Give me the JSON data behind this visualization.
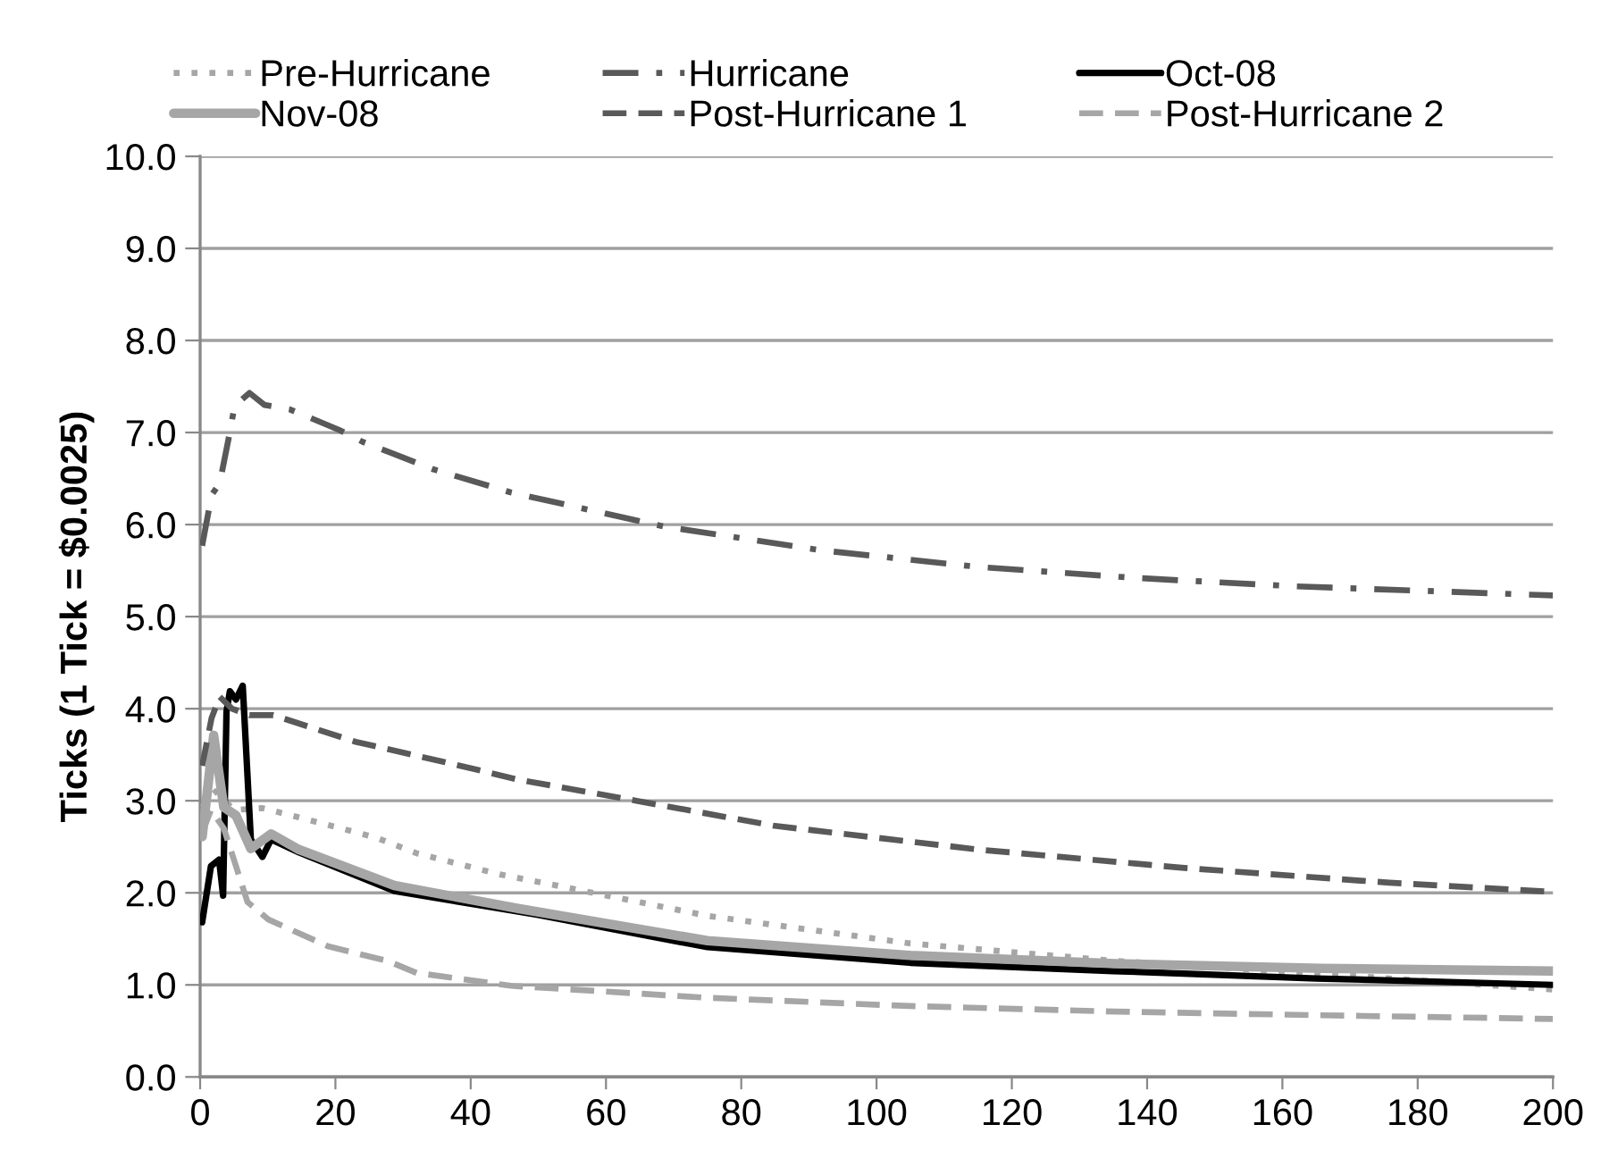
{
  "chart_data": {
    "type": "line",
    "ylabel": "Ticks (1 Tick = $0.0025)",
    "xlim": [
      0,
      200
    ],
    "xticks": [
      0,
      20,
      40,
      60,
      80,
      100,
      120,
      140,
      160,
      180,
      200
    ],
    "ylim": [
      0,
      10
    ],
    "yticks": [
      {
        "value": 0,
        "label": "0.0"
      },
      {
        "value": 1,
        "label": "1.0"
      },
      {
        "value": 2,
        "label": "2.0"
      },
      {
        "value": 3,
        "label": "3.0"
      },
      {
        "value": 4,
        "label": "4.0"
      },
      {
        "value": 5,
        "label": "5.0"
      },
      {
        "value": 6,
        "label": "6.0"
      },
      {
        "value": 7,
        "label": "7.0"
      },
      {
        "value": 8,
        "label": "8.0"
      },
      {
        "value": 9,
        "label": "9.0"
      },
      {
        "value": 10,
        "label": "10.0"
      }
    ],
    "grid": "y",
    "legend": "top",
    "marker": "none",
    "series": [
      {
        "name": "Pre-Hurricane",
        "color": "#a6a6a6",
        "line_style": "dotted",
        "x": [
          0.3,
          2.3,
          5,
          9.2,
          14.6,
          26,
          32,
          44.3,
          51.3,
          75,
          105,
          135.4,
          165.7,
          200
        ],
        "values": [
          2.93,
          3.1,
          2.9,
          2.92,
          2.82,
          2.6,
          2.43,
          2.2,
          2.1,
          1.75,
          1.45,
          1.26,
          1.12,
          0.95
        ]
      },
      {
        "name": "Hurricane",
        "color": "#595959",
        "line_style": "dashdot",
        "x": [
          0.3,
          1.7,
          2.9,
          4.2,
          5.1,
          7.3,
          9.5,
          13.3,
          20.5,
          24,
          34.5,
          45.9,
          68.5,
          91.9,
          115,
          138.4,
          161.7,
          200
        ],
        "values": [
          5.77,
          6.32,
          6.45,
          6.93,
          7.29,
          7.43,
          7.3,
          7.25,
          7.03,
          6.9,
          6.6,
          6.35,
          5.98,
          5.72,
          5.54,
          5.42,
          5.33,
          5.23
        ]
      },
      {
        "name": "Oct-08",
        "color": "#000000",
        "line_style": "solid",
        "x": [
          0.3,
          1.6,
          2.8,
          3.4,
          3.9,
          4.4,
          5.3,
          6.3,
          7.5,
          9.2,
          10.5,
          14.6,
          28.7,
          50,
          75,
          105,
          135,
          165,
          200
        ],
        "values": [
          1.68,
          2.29,
          2.36,
          1.97,
          3.97,
          4.19,
          4.1,
          4.25,
          2.58,
          2.39,
          2.58,
          2.44,
          2.02,
          1.76,
          1.41,
          1.24,
          1.15,
          1.07,
          1.0
        ]
      },
      {
        "name": "Nov-08",
        "color": "#a6a6a6",
        "line_style": "solid",
        "x": [
          0.3,
          2,
          3.5,
          5.3,
          7.5,
          10.5,
          14.6,
          28.7,
          47,
          75,
          105,
          135.4,
          165.7,
          200
        ],
        "values": [
          2.61,
          3.71,
          2.93,
          2.84,
          2.48,
          2.64,
          2.47,
          2.08,
          1.83,
          1.48,
          1.32,
          1.23,
          1.18,
          1.15
        ]
      },
      {
        "name": "Post-Hurricane 1",
        "color": "#595959",
        "line_style": "dashed",
        "x": [
          0.3,
          1.7,
          2.9,
          4.7,
          7.3,
          10.8,
          23,
          36.2,
          47,
          64.5,
          84.7,
          115,
          145.5,
          175.8,
          200
        ],
        "values": [
          3.38,
          3.9,
          4.13,
          4.0,
          3.93,
          3.93,
          3.64,
          3.42,
          3.23,
          3.0,
          2.73,
          2.47,
          2.27,
          2.11,
          2.01
        ]
      },
      {
        "name": "Post-Hurricane 2",
        "color": "#a6a6a6",
        "line_style": "dashed",
        "x": [
          0.3,
          1.6,
          3.5,
          5.3,
          7,
          10.1,
          18.9,
          27.7,
          32,
          46,
          75,
          105,
          135.4,
          165.7,
          200
        ],
        "values": [
          2.65,
          2.9,
          2.7,
          2.29,
          1.9,
          1.71,
          1.42,
          1.26,
          1.13,
          0.99,
          0.86,
          0.77,
          0.71,
          0.67,
          0.63
        ]
      }
    ]
  }
}
